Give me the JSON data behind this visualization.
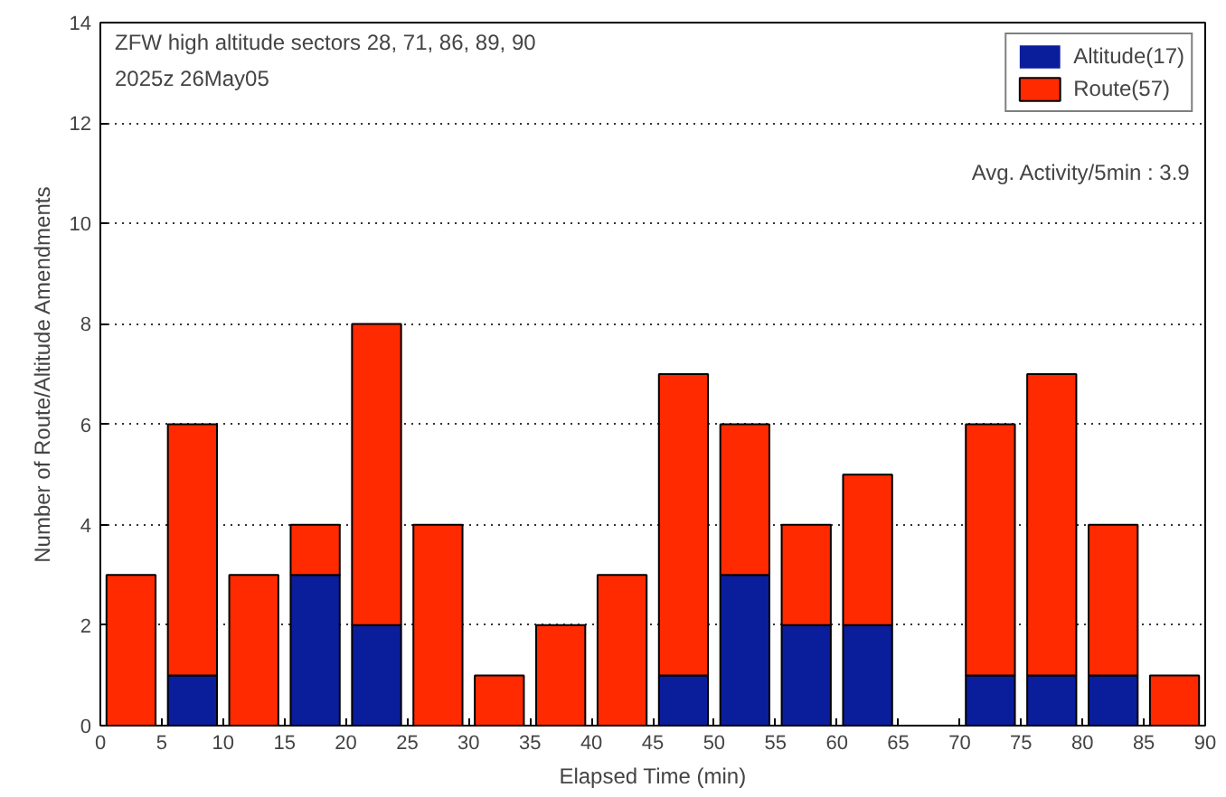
{
  "chart_data": {
    "type": "bar",
    "stacked": true,
    "xlabel": "Elapsed Time (min)",
    "ylabel": "Number of Route/Altitude Amendments",
    "x": [
      2.5,
      7.5,
      12.5,
      17.5,
      22.5,
      27.5,
      32.5,
      37.5,
      42.5,
      47.5,
      52.5,
      57.5,
      62.5,
      67.5,
      72.5,
      77.5,
      82.5,
      87.5
    ],
    "series": [
      {
        "name": "Altitude(17)",
        "color": "#0a1e9c",
        "values": [
          0,
          1,
          0,
          3,
          2,
          0,
          0,
          0,
          0,
          1,
          3,
          2,
          2,
          0,
          1,
          1,
          1,
          0
        ]
      },
      {
        "name": "Route(57)",
        "color": "#ff2a00",
        "values": [
          3,
          5,
          3,
          1,
          6,
          4,
          1,
          2,
          3,
          6,
          3,
          2,
          3,
          0,
          5,
          6,
          3,
          1
        ]
      }
    ],
    "xlim": [
      0,
      90
    ],
    "xticks": [
      0,
      5,
      10,
      15,
      20,
      25,
      30,
      35,
      40,
      45,
      50,
      55,
      60,
      65,
      70,
      75,
      80,
      85,
      90
    ],
    "ylim": [
      0,
      14
    ],
    "yticks": [
      0,
      2,
      4,
      6,
      8,
      10,
      12,
      14
    ],
    "grid": "y",
    "legend": "top right",
    "annotations": [
      "ZFW high altitude sectors 28, 71, 86, 89, 90",
      "2025z 26May05",
      "Avg. Activity/5min : 3.9"
    ]
  }
}
